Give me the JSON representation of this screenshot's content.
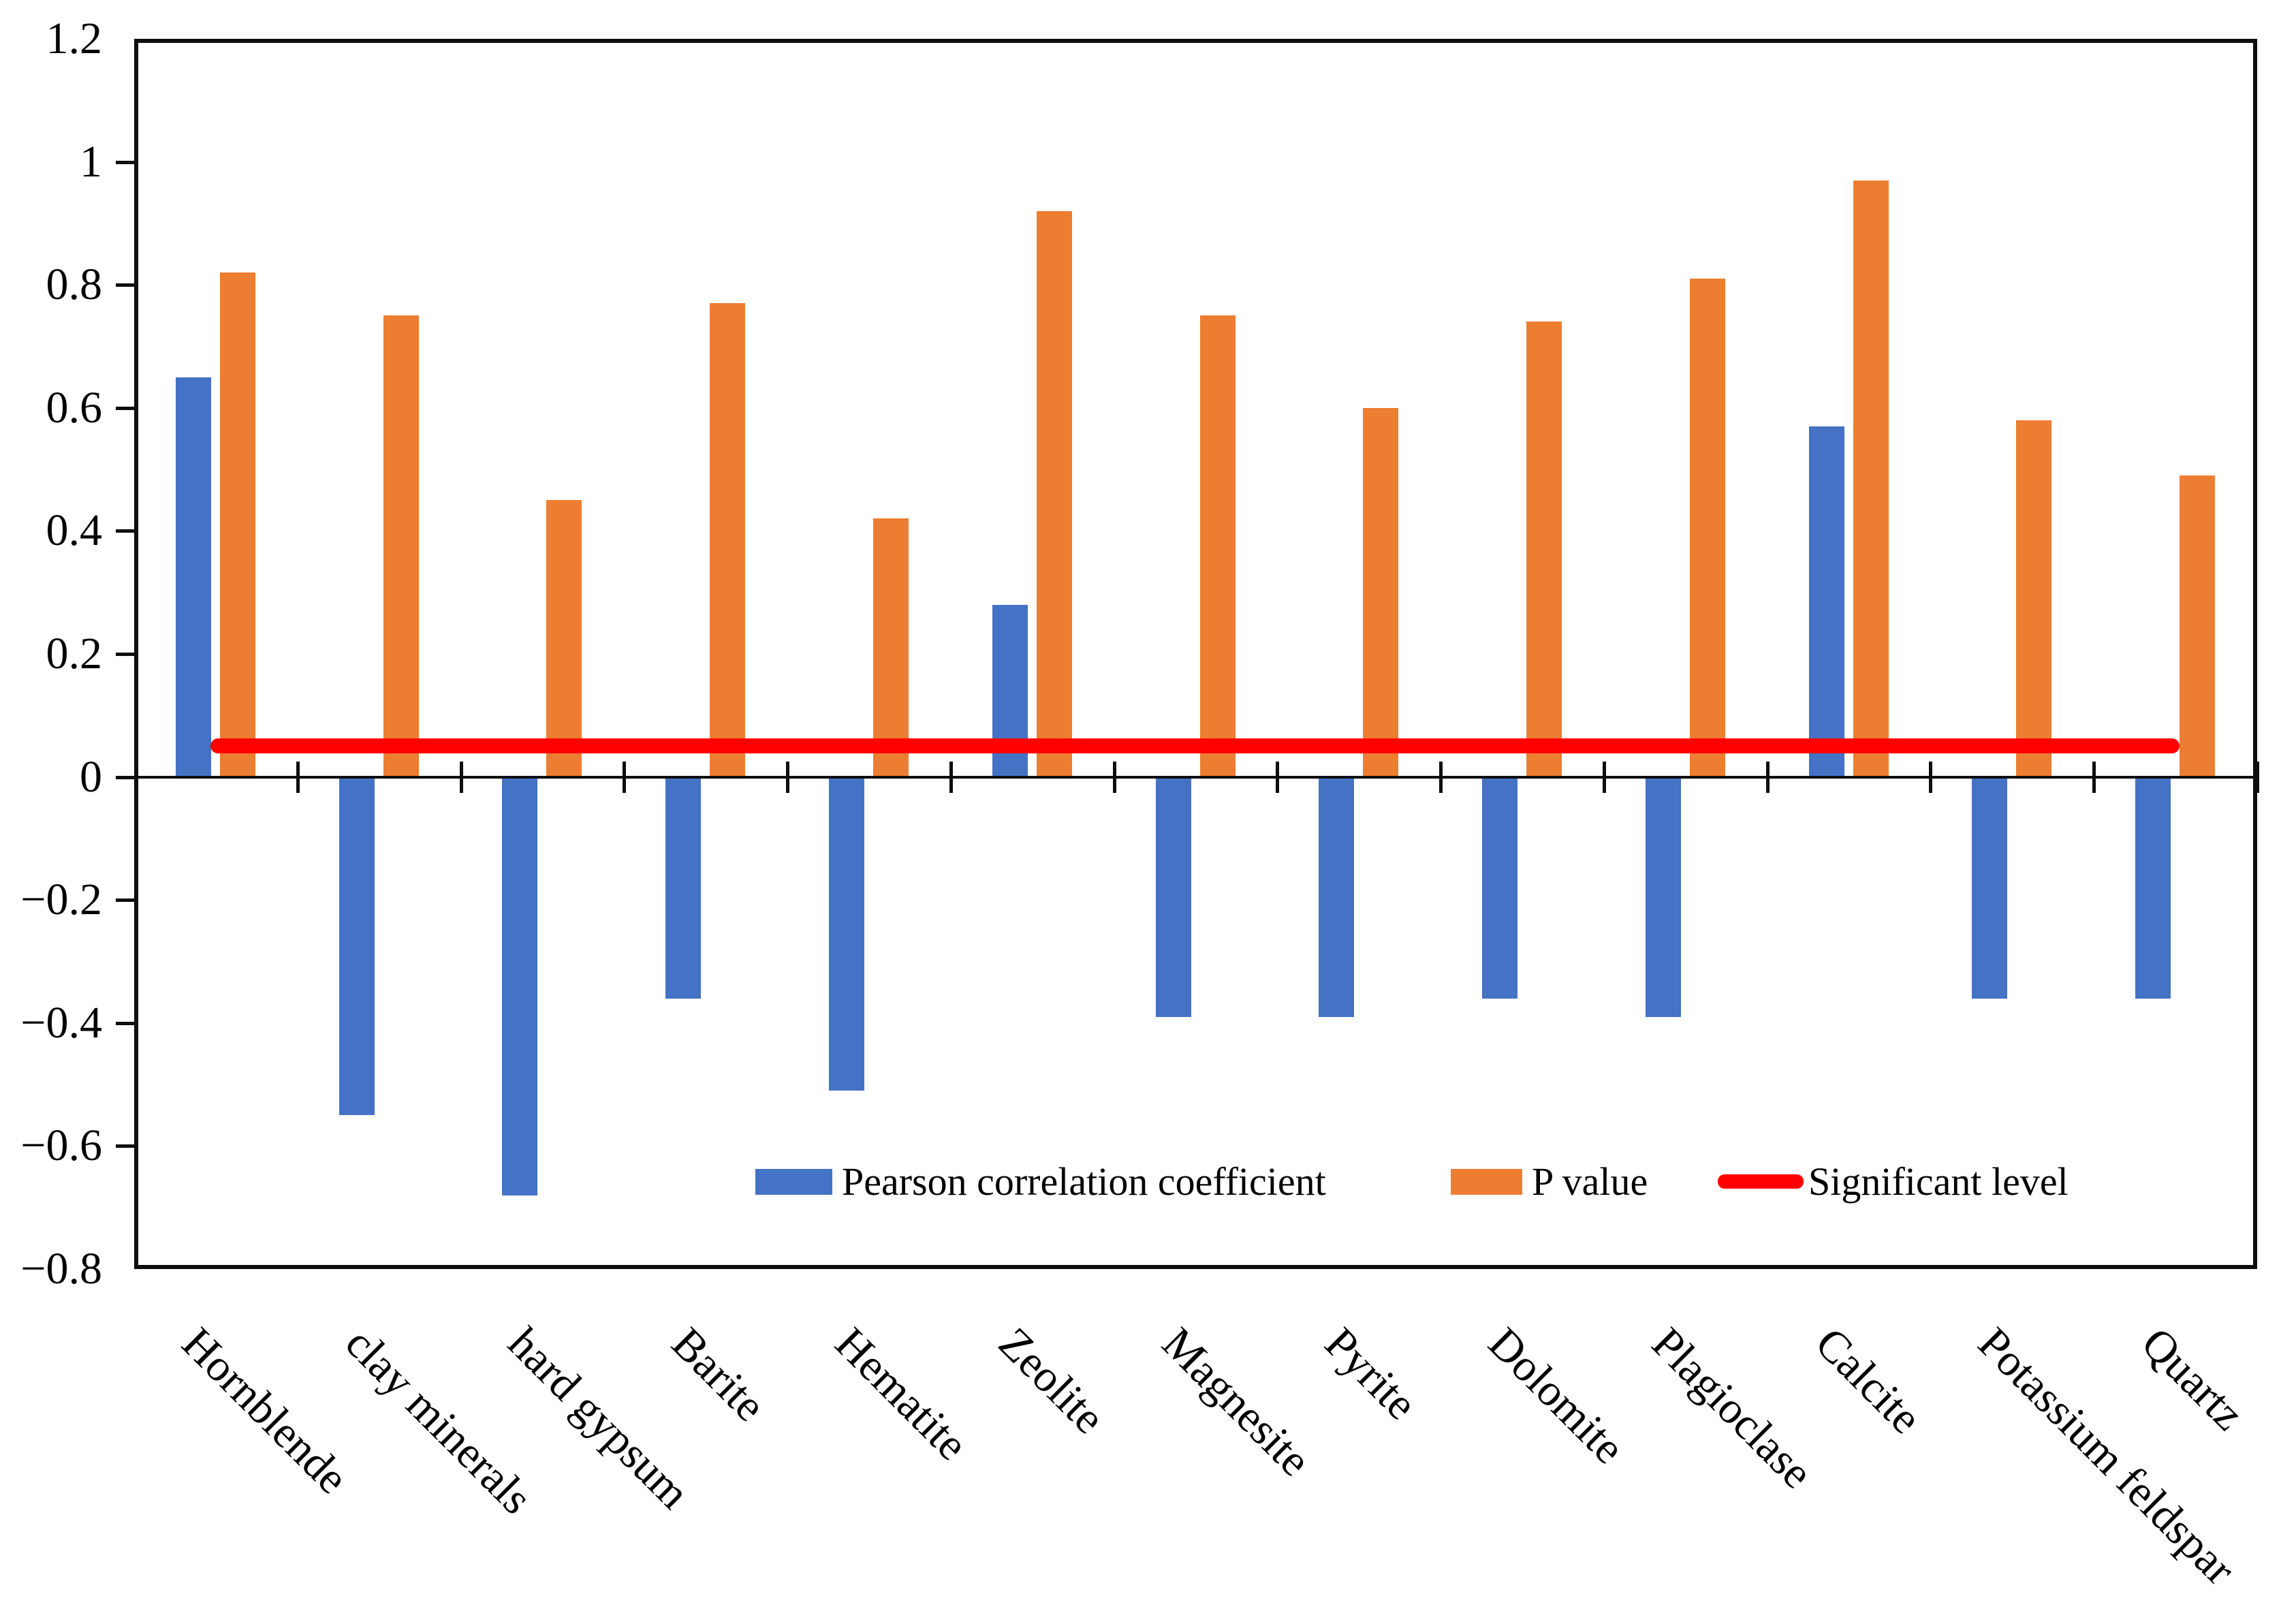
{
  "chart_data": {
    "type": "bar",
    "title": "",
    "xlabel": "",
    "ylabel": "",
    "categories": [
      "Hornblende",
      "clay minerals",
      "hard gypsum",
      "Barite",
      "Hematite",
      "Zeolite",
      "Magnesite",
      "Pyrite",
      "Dolomite",
      "Plagioclase",
      "Calcite",
      "Potassium feldspar",
      "Quartz"
    ],
    "series": [
      {
        "name": "Pearson correlation coefficient",
        "color": "#4472C4",
        "values": [
          0.65,
          -0.55,
          -0.68,
          -0.36,
          -0.51,
          0.28,
          -0.39,
          -0.39,
          -0.36,
          -0.39,
          0.57,
          -0.36,
          -0.36
        ]
      },
      {
        "name": "P value",
        "color": "#ED7D31",
        "values": [
          0.82,
          0.75,
          0.45,
          0.77,
          0.42,
          0.92,
          0.75,
          0.6,
          0.74,
          0.81,
          0.97,
          0.58,
          0.49
        ]
      }
    ],
    "significant_level": {
      "name": "Significant level",
      "color": "#FF0000",
      "value": 0.05
    },
    "ylim": [
      -0.8,
      1.2
    ],
    "yticks": [
      {
        "v": 1.2,
        "label": "1.2"
      },
      {
        "v": 1.0,
        "label": "1"
      },
      {
        "v": 0.8,
        "label": "0.8"
      },
      {
        "v": 0.6,
        "label": "0.6"
      },
      {
        "v": 0.4,
        "label": "0.4"
      },
      {
        "v": 0.2,
        "label": "0.2"
      },
      {
        "v": 0.0,
        "label": "0"
      },
      {
        "v": -0.2,
        "label": "−0.2"
      },
      {
        "v": -0.4,
        "label": "−0.4"
      },
      {
        "v": -0.6,
        "label": "−0.6"
      },
      {
        "v": -0.8,
        "label": "−0.8"
      }
    ],
    "grid": false,
    "legend_position": "inside-bottom"
  }
}
